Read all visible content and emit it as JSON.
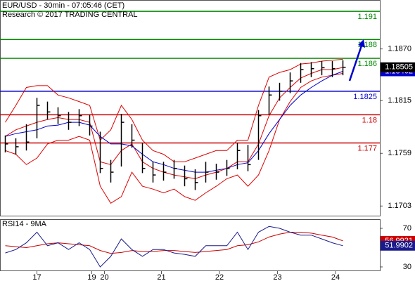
{
  "chart_data": [
    {
      "type": "ohlc",
      "title": "EUR/USD - 30min - 07:05:46 (CET)",
      "subtitle": "Research © 2017 TRADING CENTRAL",
      "xlim": [
        -0.5,
        35.5
      ],
      "ylim": [
        1.1692,
        1.1922
      ],
      "yticks": [
        {
          "value": 1.187,
          "label": "1.1870"
        },
        1.1815,
        1.1759,
        1.1703
      ],
      "color": "#000000",
      "high": [
        1.1778,
        1.1775,
        1.179,
        1.1818,
        1.1814,
        1.1808,
        1.1803,
        1.1806,
        1.18,
        1.1782,
        1.1752,
        1.1801,
        1.179,
        1.177,
        1.175,
        1.175,
        1.1752,
        1.1746,
        1.1742,
        1.175,
        1.1748,
        1.1752,
        1.177,
        1.1768,
        1.1805,
        1.183,
        1.1834,
        1.1845,
        1.1855,
        1.1856,
        1.1857,
        1.1857,
        1.1858
      ],
      "low": [
        1.176,
        1.1758,
        1.1762,
        1.1775,
        1.1795,
        1.179,
        1.1784,
        1.1788,
        1.1778,
        1.1738,
        1.1728,
        1.1745,
        1.1765,
        1.1738,
        1.1728,
        1.173,
        1.1732,
        1.1724,
        1.172,
        1.1728,
        1.1731,
        1.1735,
        1.1742,
        1.174,
        1.1752,
        1.18,
        1.1815,
        1.1823,
        1.1834,
        1.184,
        1.1842,
        1.184,
        1.1842
      ],
      "close": [
        1.1769,
        1.1766,
        1.1771,
        1.181,
        1.1803,
        1.1799,
        1.1792,
        1.1799,
        1.1788,
        1.1743,
        1.1739,
        1.1792,
        1.1773,
        1.1743,
        1.1736,
        1.1739,
        1.1743,
        1.1732,
        1.1728,
        1.1739,
        1.1739,
        1.1743,
        1.1762,
        1.1747,
        1.1799,
        1.1821,
        1.1825,
        1.1836,
        1.1848,
        1.1849,
        1.185,
        1.1849,
        1.18505
      ],
      "bands": {
        "color": "#dd0000",
        "upper": [
          1.1792,
          1.181,
          1.1829,
          1.1831,
          1.1831,
          1.1821,
          1.1818,
          1.1814,
          1.181,
          1.1773,
          1.1784,
          1.181,
          1.1795,
          1.1773,
          1.1762,
          1.1758,
          1.175,
          1.175,
          1.1754,
          1.1758,
          1.1762,
          1.1762,
          1.1773,
          1.1773,
          1.181,
          1.184,
          1.1845,
          1.1848,
          1.1854,
          1.1855,
          1.1857,
          1.1858,
          1.1859
        ],
        "middle": [
          1.1777,
          1.1784,
          1.1788,
          1.1792,
          1.1795,
          1.1797,
          1.1795,
          1.1795,
          1.1792,
          1.175,
          1.1747,
          1.1762,
          1.1769,
          1.175,
          1.1743,
          1.1739,
          1.1736,
          1.1734,
          1.1732,
          1.1736,
          1.1739,
          1.1743,
          1.175,
          1.175,
          1.1769,
          1.1799,
          1.1818,
          1.1829,
          1.1839,
          1.1844,
          1.1848,
          1.1848,
          1.18503
        ],
        "lower": [
          1.1762,
          1.1758,
          1.1747,
          1.1754,
          1.1769,
          1.1773,
          1.1773,
          1.1777,
          1.1773,
          1.1724,
          1.1706,
          1.1713,
          1.1739,
          1.1724,
          1.1721,
          1.1717,
          1.1721,
          1.1713,
          1.1709,
          1.1717,
          1.1724,
          1.1732,
          1.1736,
          1.1724,
          1.1736,
          1.1762,
          1.1795,
          1.1814,
          1.1829,
          1.1836,
          1.184,
          1.1842,
          1.1844
        ]
      },
      "ma": {
        "color": "#0000cc",
        "values": [
          1.1777,
          1.178,
          1.1782,
          1.1784,
          1.1788,
          1.1789,
          1.1792,
          1.1792,
          1.1789,
          1.1777,
          1.1769,
          1.1769,
          1.1767,
          1.1758,
          1.175,
          1.1747,
          1.1743,
          1.1741,
          1.1739,
          1.1739,
          1.1741,
          1.1743,
          1.1747,
          1.1749,
          1.1762,
          1.178,
          1.1795,
          1.181,
          1.1821,
          1.1829,
          1.1836,
          1.1842,
          1.18462
        ]
      },
      "levels": [
        {
          "value": 1.191,
          "color": "#008800"
        },
        {
          "value": 1.188,
          "color": "#008800"
        },
        {
          "value": 1.186,
          "color": "#008800"
        },
        {
          "value": 1.1825,
          "color": "#0000cc"
        },
        {
          "value": 1.18,
          "color": "#cc0000"
        },
        {
          "value": 1.177,
          "color": "#cc0000"
        }
      ]
    },
    {
      "type": "line",
      "title": "RSI14 - 9MA",
      "xlim": [
        -0.5,
        35.5
      ],
      "ylim": [
        25.6,
        79.5
      ],
      "yticks": [
        70,
        30
      ],
      "xticks": [
        {
          "value": 3,
          "label": "17"
        },
        {
          "value": 8.2,
          "label": "19"
        },
        {
          "value": 9.4,
          "label": "20"
        },
        {
          "value": 14.8,
          "label": "21"
        },
        {
          "value": 20.3,
          "label": "22"
        },
        {
          "value": 25.8,
          "label": "23"
        },
        {
          "value": 31.3,
          "label": "24"
        }
      ],
      "rsi": {
        "color": "#1a1a8c",
        "values": [
          44.5,
          48,
          55,
          66,
          52,
          55,
          48,
          55,
          48,
          30,
          41,
          59,
          48,
          41,
          48,
          48,
          44.5,
          43,
          41,
          52,
          52,
          52,
          66,
          48,
          66,
          72,
          70,
          66,
          63,
          63,
          59,
          55,
          51.9902
        ]
      },
      "ma": {
        "color": "#cc0000",
        "values": [
          52,
          51,
          50,
          52,
          54,
          55,
          54,
          53,
          52,
          47,
          44,
          45,
          47,
          46,
          46,
          47,
          47,
          46,
          45,
          46,
          47,
          48,
          52,
          53,
          56,
          61,
          64,
          66,
          66,
          65,
          63,
          61,
          56.9921
        ]
      }
    }
  ]
}
